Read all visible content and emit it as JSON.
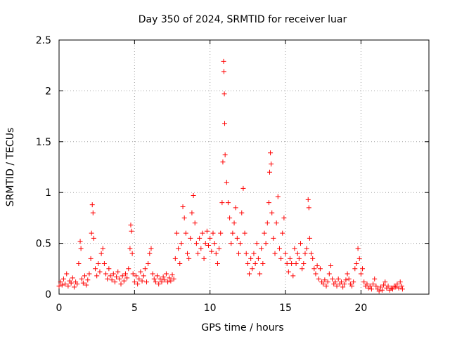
{
  "chart_data": {
    "type": "scatter",
    "title": "Day 350 of 2024, SRMTID for receiver luar",
    "xlabel": "GPS time / hours",
    "ylabel": "SRMTID / TECUs",
    "xlim": [
      0,
      24.5
    ],
    "ylim": [
      0,
      2.5
    ],
    "xticks": [
      0,
      5,
      10,
      15,
      20
    ],
    "xtick_labels": [
      "0",
      "5",
      "10",
      "15",
      "20"
    ],
    "yticks": [
      0,
      0.5,
      1,
      1.5,
      2,
      2.5
    ],
    "ytick_labels": [
      "0",
      "0.5",
      "1",
      "1.5",
      "2",
      "2.5"
    ],
    "grid": true,
    "marker": "+",
    "series_color": "#ff0000",
    "series": [
      {
        "name": "SRMTID",
        "points": [
          [
            0.0,
            0.08
          ],
          [
            0.1,
            0.12
          ],
          [
            0.2,
            0.09
          ],
          [
            0.3,
            0.15
          ],
          [
            0.4,
            0.1
          ],
          [
            0.5,
            0.2
          ],
          [
            0.6,
            0.08
          ],
          [
            0.7,
            0.13
          ],
          [
            0.8,
            0.11
          ],
          [
            0.9,
            0.16
          ],
          [
            1.0,
            0.07
          ],
          [
            1.1,
            0.12
          ],
          [
            1.2,
            0.1
          ],
          [
            1.3,
            0.3
          ],
          [
            1.4,
            0.52
          ],
          [
            1.45,
            0.45
          ],
          [
            1.5,
            0.15
          ],
          [
            1.6,
            0.11
          ],
          [
            1.7,
            0.18
          ],
          [
            1.8,
            0.09
          ],
          [
            1.9,
            0.14
          ],
          [
            2.0,
            0.2
          ],
          [
            2.1,
            0.35
          ],
          [
            2.15,
            0.6
          ],
          [
            2.2,
            0.88
          ],
          [
            2.25,
            0.8
          ],
          [
            2.3,
            0.55
          ],
          [
            2.4,
            0.25
          ],
          [
            2.5,
            0.18
          ],
          [
            2.6,
            0.3
          ],
          [
            2.7,
            0.22
          ],
          [
            2.8,
            0.4
          ],
          [
            2.9,
            0.45
          ],
          [
            3.0,
            0.3
          ],
          [
            3.1,
            0.2
          ],
          [
            3.2,
            0.15
          ],
          [
            3.3,
            0.25
          ],
          [
            3.4,
            0.18
          ],
          [
            3.5,
            0.14
          ],
          [
            3.6,
            0.2
          ],
          [
            3.7,
            0.12
          ],
          [
            3.8,
            0.17
          ],
          [
            3.9,
            0.22
          ],
          [
            4.0,
            0.15
          ],
          [
            4.1,
            0.1
          ],
          [
            4.2,
            0.18
          ],
          [
            4.3,
            0.13
          ],
          [
            4.4,
            0.2
          ],
          [
            4.5,
            0.16
          ],
          [
            4.6,
            0.25
          ],
          [
            4.7,
            0.45
          ],
          [
            4.75,
            0.68
          ],
          [
            4.8,
            0.62
          ],
          [
            4.85,
            0.4
          ],
          [
            4.9,
            0.2
          ],
          [
            5.0,
            0.12
          ],
          [
            5.1,
            0.18
          ],
          [
            5.2,
            0.1
          ],
          [
            5.3,
            0.15
          ],
          [
            5.4,
            0.22
          ],
          [
            5.5,
            0.13
          ],
          [
            5.6,
            0.18
          ],
          [
            5.7,
            0.25
          ],
          [
            5.8,
            0.12
          ],
          [
            5.9,
            0.3
          ],
          [
            6.0,
            0.4
          ],
          [
            6.1,
            0.45
          ],
          [
            6.2,
            0.2
          ],
          [
            6.3,
            0.15
          ],
          [
            6.4,
            0.12
          ],
          [
            6.5,
            0.18
          ],
          [
            6.6,
            0.1
          ],
          [
            6.7,
            0.15
          ],
          [
            6.8,
            0.12
          ],
          [
            6.9,
            0.17
          ],
          [
            7.0,
            0.14
          ],
          [
            7.1,
            0.2
          ],
          [
            7.2,
            0.12
          ],
          [
            7.3,
            0.16
          ],
          [
            7.4,
            0.13
          ],
          [
            7.5,
            0.19
          ],
          [
            7.6,
            0.15
          ],
          [
            7.7,
            0.35
          ],
          [
            7.8,
            0.6
          ],
          [
            7.9,
            0.45
          ],
          [
            8.0,
            0.3
          ],
          [
            8.1,
            0.5
          ],
          [
            8.2,
            0.86
          ],
          [
            8.3,
            0.75
          ],
          [
            8.4,
            0.6
          ],
          [
            8.5,
            0.4
          ],
          [
            8.6,
            0.35
          ],
          [
            8.7,
            0.55
          ],
          [
            8.8,
            0.8
          ],
          [
            8.9,
            0.97
          ],
          [
            9.0,
            0.7
          ],
          [
            9.1,
            0.5
          ],
          [
            9.2,
            0.4
          ],
          [
            9.3,
            0.55
          ],
          [
            9.4,
            0.45
          ],
          [
            9.5,
            0.6
          ],
          [
            9.6,
            0.35
          ],
          [
            9.7,
            0.5
          ],
          [
            9.8,
            0.62
          ],
          [
            9.9,
            0.48
          ],
          [
            10.0,
            0.55
          ],
          [
            10.1,
            0.42
          ],
          [
            10.2,
            0.6
          ],
          [
            10.3,
            0.5
          ],
          [
            10.4,
            0.4
          ],
          [
            10.5,
            0.3
          ],
          [
            10.6,
            0.45
          ],
          [
            10.7,
            0.6
          ],
          [
            10.8,
            0.9
          ],
          [
            10.85,
            1.3
          ],
          [
            10.9,
            2.29
          ],
          [
            10.92,
            2.19
          ],
          [
            10.95,
            1.97
          ],
          [
            10.97,
            1.68
          ],
          [
            11.0,
            1.37
          ],
          [
            11.1,
            1.1
          ],
          [
            11.2,
            0.9
          ],
          [
            11.3,
            0.75
          ],
          [
            11.4,
            0.5
          ],
          [
            11.5,
            0.6
          ],
          [
            11.6,
            0.7
          ],
          [
            11.7,
            0.85
          ],
          [
            11.8,
            0.55
          ],
          [
            11.9,
            0.4
          ],
          [
            12.0,
            0.5
          ],
          [
            12.1,
            0.8
          ],
          [
            12.2,
            1.04
          ],
          [
            12.3,
            0.6
          ],
          [
            12.4,
            0.4
          ],
          [
            12.5,
            0.3
          ],
          [
            12.6,
            0.2
          ],
          [
            12.7,
            0.35
          ],
          [
            12.8,
            0.25
          ],
          [
            12.9,
            0.4
          ],
          [
            13.0,
            0.3
          ],
          [
            13.1,
            0.5
          ],
          [
            13.2,
            0.35
          ],
          [
            13.3,
            0.2
          ],
          [
            13.4,
            0.45
          ],
          [
            13.5,
            0.3
          ],
          [
            13.6,
            0.6
          ],
          [
            13.7,
            0.5
          ],
          [
            13.8,
            0.7
          ],
          [
            13.9,
            0.9
          ],
          [
            13.95,
            1.2
          ],
          [
            14.0,
            1.39
          ],
          [
            14.05,
            1.28
          ],
          [
            14.1,
            0.8
          ],
          [
            14.2,
            0.55
          ],
          [
            14.3,
            0.4
          ],
          [
            14.4,
            0.7
          ],
          [
            14.5,
            0.96
          ],
          [
            14.6,
            0.45
          ],
          [
            14.7,
            0.35
          ],
          [
            14.8,
            0.6
          ],
          [
            14.9,
            0.75
          ],
          [
            15.0,
            0.4
          ],
          [
            15.1,
            0.3
          ],
          [
            15.2,
            0.22
          ],
          [
            15.3,
            0.35
          ],
          [
            15.4,
            0.3
          ],
          [
            15.5,
            0.18
          ],
          [
            15.6,
            0.45
          ],
          [
            15.7,
            0.3
          ],
          [
            15.8,
            0.4
          ],
          [
            15.9,
            0.35
          ],
          [
            16.0,
            0.5
          ],
          [
            16.1,
            0.25
          ],
          [
            16.2,
            0.3
          ],
          [
            16.3,
            0.4
          ],
          [
            16.4,
            0.45
          ],
          [
            16.5,
            0.93
          ],
          [
            16.55,
            0.85
          ],
          [
            16.6,
            0.55
          ],
          [
            16.7,
            0.4
          ],
          [
            16.8,
            0.35
          ],
          [
            16.9,
            0.25
          ],
          [
            17.0,
            0.2
          ],
          [
            17.1,
            0.28
          ],
          [
            17.2,
            0.15
          ],
          [
            17.3,
            0.25
          ],
          [
            17.4,
            0.12
          ],
          [
            17.5,
            0.1
          ],
          [
            17.6,
            0.14
          ],
          [
            17.7,
            0.08
          ],
          [
            17.8,
            0.12
          ],
          [
            17.9,
            0.2
          ],
          [
            18.0,
            0.28
          ],
          [
            18.1,
            0.15
          ],
          [
            18.2,
            0.1
          ],
          [
            18.3,
            0.12
          ],
          [
            18.4,
            0.08
          ],
          [
            18.5,
            0.15
          ],
          [
            18.6,
            0.1
          ],
          [
            18.7,
            0.12
          ],
          [
            18.8,
            0.07
          ],
          [
            18.9,
            0.1
          ],
          [
            19.0,
            0.14
          ],
          [
            19.1,
            0.2
          ],
          [
            19.2,
            0.15
          ],
          [
            19.3,
            0.1
          ],
          [
            19.4,
            0.08
          ],
          [
            19.5,
            0.12
          ],
          [
            19.6,
            0.25
          ],
          [
            19.7,
            0.3
          ],
          [
            19.8,
            0.45
          ],
          [
            19.9,
            0.35
          ],
          [
            20.0,
            0.2
          ],
          [
            20.1,
            0.25
          ],
          [
            20.2,
            0.12
          ],
          [
            20.3,
            0.08
          ],
          [
            20.4,
            0.1
          ],
          [
            20.5,
            0.06
          ],
          [
            20.6,
            0.08
          ],
          [
            20.7,
            0.05
          ],
          [
            20.8,
            0.1
          ],
          [
            20.9,
            0.15
          ],
          [
            21.0,
            0.08
          ],
          [
            21.1,
            0.05
          ],
          [
            21.2,
            0.03
          ],
          [
            21.3,
            0.07
          ],
          [
            21.4,
            0.04
          ],
          [
            21.5,
            0.09
          ],
          [
            21.6,
            0.12
          ],
          [
            21.7,
            0.06
          ],
          [
            21.8,
            0.08
          ],
          [
            21.9,
            0.04
          ],
          [
            22.0,
            0.06
          ],
          [
            22.1,
            0.05
          ],
          [
            22.2,
            0.08
          ],
          [
            22.3,
            0.07
          ],
          [
            22.4,
            0.1
          ],
          [
            22.5,
            0.06
          ],
          [
            22.6,
            0.12
          ],
          [
            22.7,
            0.08
          ],
          [
            22.75,
            0.05
          ]
        ]
      }
    ]
  }
}
